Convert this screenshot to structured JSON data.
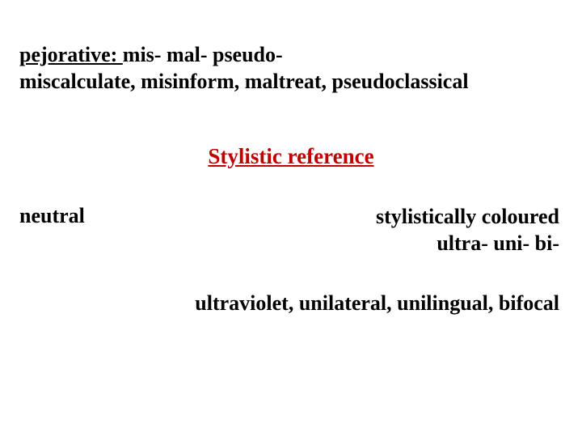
{
  "colors": {
    "accent": "#c00000",
    "text": "#000000",
    "background": "#ffffff"
  },
  "typography": {
    "font_family": "Times New Roman",
    "base_size_pt": 26,
    "weight": "bold"
  },
  "pejorative": {
    "label": "pejorative: ",
    "prefixes": "mis- mal- pseudo-",
    "examples": "miscalculate, misinform, maltreat, pseudoclassical"
  },
  "heading": "Stylistic reference",
  "neutral_label": "neutral",
  "coloured": {
    "label": "stylistically coloured",
    "prefixes": "ultra- uni- bi-"
  },
  "examples_line": "ultraviolet, unilateral, unilingual, bifocal"
}
